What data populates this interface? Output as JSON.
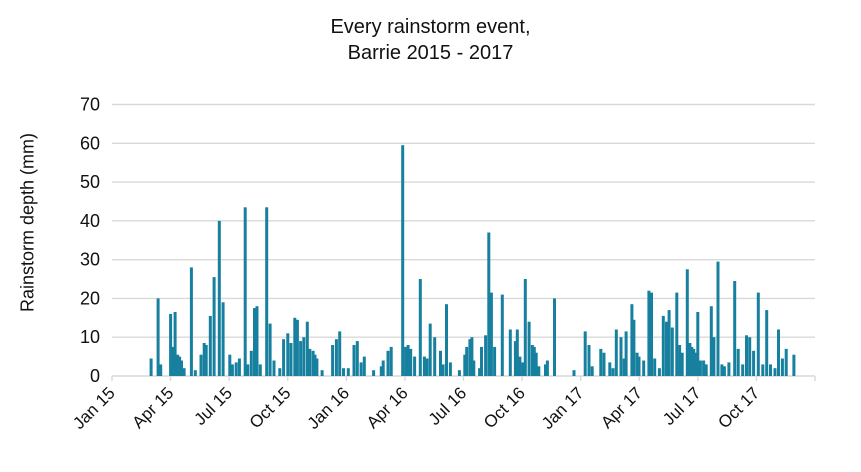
{
  "chart_data": {
    "type": "bar",
    "title_line1": "Every rainstorm event,",
    "title_line2": "Barrie 2015 - 2017",
    "ylabel": "Rainstorm depth (mm)",
    "ylim": [
      0,
      70
    ],
    "y_ticks": [
      0,
      10,
      20,
      30,
      40,
      50,
      60,
      70
    ],
    "x_tick_labels": [
      "Jan 15",
      "Apr 15",
      "Jul 15",
      "Oct 15",
      "Jan 16",
      "Apr 16",
      "Jul 16",
      "Oct 16",
      "Jan 17",
      "Apr 17",
      "Jul 17",
      "Oct 17"
    ],
    "x_range_months": [
      "2015-01",
      "2018-01"
    ],
    "grid": true,
    "legend": "none",
    "bar_color": "#17809E",
    "grid_color": "#d9d9d9",
    "text_color": "#111111",
    "events": [
      {
        "date": "2015-03-01",
        "depth": 4.5
      },
      {
        "date": "2015-03-12",
        "depth": 20
      },
      {
        "date": "2015-03-16",
        "depth": 3
      },
      {
        "date": "2015-04-01",
        "depth": 16
      },
      {
        "date": "2015-04-04",
        "depth": 7.5
      },
      {
        "date": "2015-04-08",
        "depth": 16.5
      },
      {
        "date": "2015-04-12",
        "depth": 5.5
      },
      {
        "date": "2015-04-15",
        "depth": 5
      },
      {
        "date": "2015-04-18",
        "depth": 4
      },
      {
        "date": "2015-04-22",
        "depth": 2
      },
      {
        "date": "2015-05-03",
        "depth": 28
      },
      {
        "date": "2015-05-09",
        "depth": 1.5
      },
      {
        "date": "2015-05-18",
        "depth": 5.5
      },
      {
        "date": "2015-05-23",
        "depth": 8.5
      },
      {
        "date": "2015-05-26",
        "depth": 8
      },
      {
        "date": "2015-06-02",
        "depth": 15.5
      },
      {
        "date": "2015-06-08",
        "depth": 25.5
      },
      {
        "date": "2015-06-16",
        "depth": 40
      },
      {
        "date": "2015-06-22",
        "depth": 19
      },
      {
        "date": "2015-07-02",
        "depth": 5.5
      },
      {
        "date": "2015-07-06",
        "depth": 3
      },
      {
        "date": "2015-07-12",
        "depth": 3.5
      },
      {
        "date": "2015-07-17",
        "depth": 4.5
      },
      {
        "date": "2015-07-26",
        "depth": 43.5
      },
      {
        "date": "2015-07-30",
        "depth": 3
      },
      {
        "date": "2015-08-05",
        "depth": 6.5
      },
      {
        "date": "2015-08-10",
        "depth": 17.5
      },
      {
        "date": "2015-08-14",
        "depth": 18
      },
      {
        "date": "2015-08-19",
        "depth": 3
      },
      {
        "date": "2015-08-29",
        "depth": 43.5
      },
      {
        "date": "2015-09-04",
        "depth": 13.5
      },
      {
        "date": "2015-09-10",
        "depth": 4
      },
      {
        "date": "2015-09-19",
        "depth": 2
      },
      {
        "date": "2015-09-25",
        "depth": 9.5
      },
      {
        "date": "2015-10-01",
        "depth": 11
      },
      {
        "date": "2015-10-06",
        "depth": 8.5
      },
      {
        "date": "2015-10-12",
        "depth": 15
      },
      {
        "date": "2015-10-16",
        "depth": 14.5
      },
      {
        "date": "2015-10-21",
        "depth": 9
      },
      {
        "date": "2015-10-26",
        "depth": 10
      },
      {
        "date": "2015-11-01",
        "depth": 14
      },
      {
        "date": "2015-11-05",
        "depth": 7
      },
      {
        "date": "2015-11-10",
        "depth": 6.5
      },
      {
        "date": "2015-11-13",
        "depth": 5.5
      },
      {
        "date": "2015-11-16",
        "depth": 4.5
      },
      {
        "date": "2015-11-24",
        "depth": 1.5
      },
      {
        "date": "2015-12-10",
        "depth": 8
      },
      {
        "date": "2015-12-16",
        "depth": 9.5
      },
      {
        "date": "2015-12-21",
        "depth": 11.5
      },
      {
        "date": "2015-12-27",
        "depth": 2
      },
      {
        "date": "2016-01-04",
        "depth": 2
      },
      {
        "date": "2016-01-13",
        "depth": 8
      },
      {
        "date": "2016-01-18",
        "depth": 9
      },
      {
        "date": "2016-01-24",
        "depth": 3.5
      },
      {
        "date": "2016-01-29",
        "depth": 5
      },
      {
        "date": "2016-02-13",
        "depth": 1.5
      },
      {
        "date": "2016-02-25",
        "depth": 2.5
      },
      {
        "date": "2016-02-28",
        "depth": 4
      },
      {
        "date": "2016-03-05",
        "depth": 6.5
      },
      {
        "date": "2016-03-10",
        "depth": 7.5
      },
      {
        "date": "2016-03-28",
        "depth": 59.5
      },
      {
        "date": "2016-04-02",
        "depth": 7.5
      },
      {
        "date": "2016-04-06",
        "depth": 8
      },
      {
        "date": "2016-04-10",
        "depth": 7
      },
      {
        "date": "2016-04-16",
        "depth": 5
      },
      {
        "date": "2016-04-25",
        "depth": 25
      },
      {
        "date": "2016-05-01",
        "depth": 5
      },
      {
        "date": "2016-05-05",
        "depth": 4.5
      },
      {
        "date": "2016-05-10",
        "depth": 13.5
      },
      {
        "date": "2016-05-17",
        "depth": 10
      },
      {
        "date": "2016-05-26",
        "depth": 6.5
      },
      {
        "date": "2016-05-30",
        "depth": 3
      },
      {
        "date": "2016-06-05",
        "depth": 18.5
      },
      {
        "date": "2016-06-11",
        "depth": 3.5
      },
      {
        "date": "2016-06-25",
        "depth": 1.5
      },
      {
        "date": "2016-07-03",
        "depth": 5.5
      },
      {
        "date": "2016-07-06",
        "depth": 7.5
      },
      {
        "date": "2016-07-11",
        "depth": 9.5
      },
      {
        "date": "2016-07-14",
        "depth": 10
      },
      {
        "date": "2016-07-17",
        "depth": 4
      },
      {
        "date": "2016-07-26",
        "depth": 2
      },
      {
        "date": "2016-07-29",
        "depth": 7.5
      },
      {
        "date": "2016-08-05",
        "depth": 10.5
      },
      {
        "date": "2016-08-10",
        "depth": 37
      },
      {
        "date": "2016-08-14",
        "depth": 21.5
      },
      {
        "date": "2016-08-19",
        "depth": 7.5
      },
      {
        "date": "2016-08-31",
        "depth": 21
      },
      {
        "date": "2016-09-13",
        "depth": 12
      },
      {
        "date": "2016-09-21",
        "depth": 9
      },
      {
        "date": "2016-09-24",
        "depth": 12
      },
      {
        "date": "2016-09-28",
        "depth": 5
      },
      {
        "date": "2016-10-02",
        "depth": 3.5
      },
      {
        "date": "2016-10-06",
        "depth": 25
      },
      {
        "date": "2016-10-12",
        "depth": 14
      },
      {
        "date": "2016-10-17",
        "depth": 8
      },
      {
        "date": "2016-10-20",
        "depth": 7.5
      },
      {
        "date": "2016-10-23",
        "depth": 6
      },
      {
        "date": "2016-10-27",
        "depth": 2.5
      },
      {
        "date": "2016-11-07",
        "depth": 3
      },
      {
        "date": "2016-11-10",
        "depth": 4
      },
      {
        "date": "2016-11-21",
        "depth": 20
      },
      {
        "date": "2016-12-21",
        "depth": 1.5
      },
      {
        "date": "2017-01-08",
        "depth": 11.5
      },
      {
        "date": "2017-01-14",
        "depth": 8
      },
      {
        "date": "2017-01-19",
        "depth": 2.5
      },
      {
        "date": "2017-02-02",
        "depth": 7
      },
      {
        "date": "2017-02-07",
        "depth": 6
      },
      {
        "date": "2017-02-16",
        "depth": 3.5
      },
      {
        "date": "2017-02-21",
        "depth": 2
      },
      {
        "date": "2017-02-26",
        "depth": 12
      },
      {
        "date": "2017-03-03",
        "depth": 10
      },
      {
        "date": "2017-03-08",
        "depth": 4.5
      },
      {
        "date": "2017-03-11",
        "depth": 11.5
      },
      {
        "date": "2017-03-20",
        "depth": 18.5
      },
      {
        "date": "2017-03-23",
        "depth": 14.5
      },
      {
        "date": "2017-03-28",
        "depth": 6
      },
      {
        "date": "2017-03-31",
        "depth": 5
      },
      {
        "date": "2017-04-08",
        "depth": 4
      },
      {
        "date": "2017-04-16",
        "depth": 22
      },
      {
        "date": "2017-04-20",
        "depth": 21.5
      },
      {
        "date": "2017-04-25",
        "depth": 4.5
      },
      {
        "date": "2017-05-02",
        "depth": 2
      },
      {
        "date": "2017-05-08",
        "depth": 15.5
      },
      {
        "date": "2017-05-13",
        "depth": 14
      },
      {
        "date": "2017-05-17",
        "depth": 17
      },
      {
        "date": "2017-05-22",
        "depth": 12.5
      },
      {
        "date": "2017-05-29",
        "depth": 21.5
      },
      {
        "date": "2017-06-03",
        "depth": 8
      },
      {
        "date": "2017-06-07",
        "depth": 6
      },
      {
        "date": "2017-06-15",
        "depth": 27.5
      },
      {
        "date": "2017-06-19",
        "depth": 8.5
      },
      {
        "date": "2017-06-22",
        "depth": 7.5
      },
      {
        "date": "2017-06-25",
        "depth": 7
      },
      {
        "date": "2017-06-28",
        "depth": 6
      },
      {
        "date": "2017-07-01",
        "depth": 16.5
      },
      {
        "date": "2017-07-05",
        "depth": 4
      },
      {
        "date": "2017-07-10",
        "depth": 4
      },
      {
        "date": "2017-07-14",
        "depth": 3
      },
      {
        "date": "2017-07-22",
        "depth": 18
      },
      {
        "date": "2017-07-26",
        "depth": 10
      },
      {
        "date": "2017-08-02",
        "depth": 29.5
      },
      {
        "date": "2017-08-08",
        "depth": 3
      },
      {
        "date": "2017-08-12",
        "depth": 2.5
      },
      {
        "date": "2017-08-19",
        "depth": 3.5
      },
      {
        "date": "2017-08-28",
        "depth": 24.5
      },
      {
        "date": "2017-09-03",
        "depth": 7
      },
      {
        "date": "2017-09-10",
        "depth": 3
      },
      {
        "date": "2017-09-16",
        "depth": 10.5
      },
      {
        "date": "2017-09-21",
        "depth": 10
      },
      {
        "date": "2017-09-27",
        "depth": 6.5
      },
      {
        "date": "2017-10-04",
        "depth": 21.5
      },
      {
        "date": "2017-10-11",
        "depth": 3
      },
      {
        "date": "2017-10-17",
        "depth": 17
      },
      {
        "date": "2017-10-23",
        "depth": 3
      },
      {
        "date": "2017-10-30",
        "depth": 2
      },
      {
        "date": "2017-11-05",
        "depth": 12
      },
      {
        "date": "2017-11-11",
        "depth": 4.5
      },
      {
        "date": "2017-11-17",
        "depth": 7
      },
      {
        "date": "2017-11-29",
        "depth": 5.5
      }
    ]
  }
}
